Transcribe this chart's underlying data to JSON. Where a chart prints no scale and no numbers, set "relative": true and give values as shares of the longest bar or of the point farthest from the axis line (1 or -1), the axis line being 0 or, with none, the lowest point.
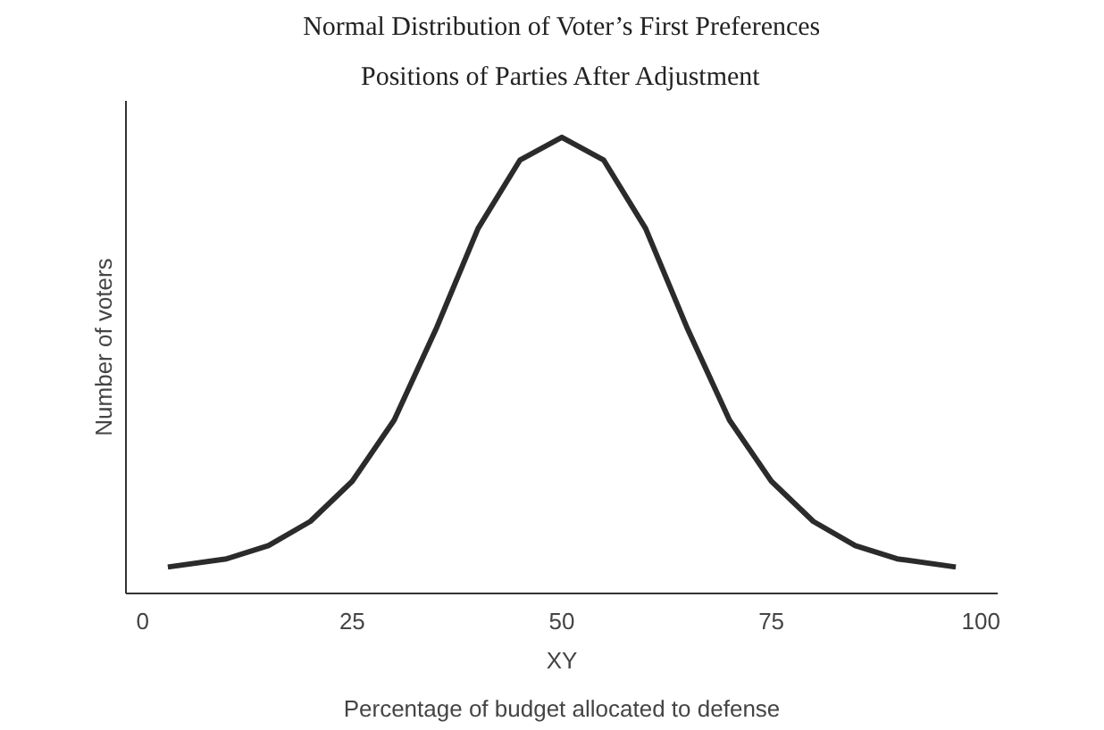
{
  "chart_data": {
    "type": "line",
    "title": "Normal Distribution of Voter’s First Preferences",
    "subtitle": "Positions of Parties After Adjustment",
    "xlabel": "Percentage of budget allocated to defense",
    "ylabel": "Number of voters",
    "relative": true,
    "x": [
      3,
      10,
      15,
      20,
      25,
      30,
      35,
      40,
      45,
      50,
      55,
      60,
      65,
      70,
      75,
      80,
      85,
      90,
      97
    ],
    "series": [
      {
        "color": "#2b2b2b",
        "values": [
          0.058,
          0.076,
          0.105,
          0.158,
          0.246,
          0.38,
          0.58,
          0.8,
          0.95,
          1,
          0.95,
          0.8,
          0.58,
          0.38,
          0.246,
          0.158,
          0.105,
          0.076,
          0.058
        ]
      }
    ],
    "xlim": [
      -2,
      102
    ],
    "xticks": [
      0,
      25,
      50,
      75,
      100
    ],
    "annotations": [
      "XY"
    ],
    "grid": false,
    "marker": "none",
    "line_style": "solid"
  }
}
